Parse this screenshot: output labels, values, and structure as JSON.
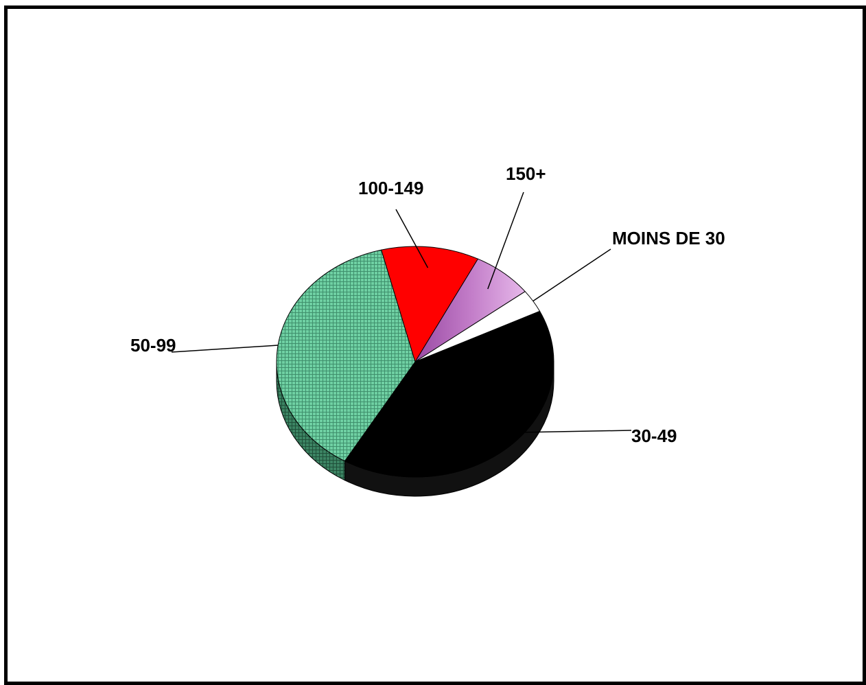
{
  "chart_data": {
    "type": "pie",
    "three_d": true,
    "title": "",
    "legend": "none",
    "slices": [
      {
        "label": "30-49",
        "value": 40.7,
        "color": "#000000",
        "pattern": "solid"
      },
      {
        "label": "50-99",
        "value": 37.6,
        "color": "#5fbf94",
        "pattern": "grid"
      },
      {
        "label": "100-149",
        "value": 11.4,
        "color": "#ff0000",
        "pattern": "solid"
      },
      {
        "label": "150+",
        "value": 7.1,
        "color": "#b15cb8",
        "pattern": "gradient"
      },
      {
        "label": "MOINS DE 30",
        "value": 3.2,
        "color": "#ffffff",
        "pattern": "solid"
      }
    ]
  }
}
